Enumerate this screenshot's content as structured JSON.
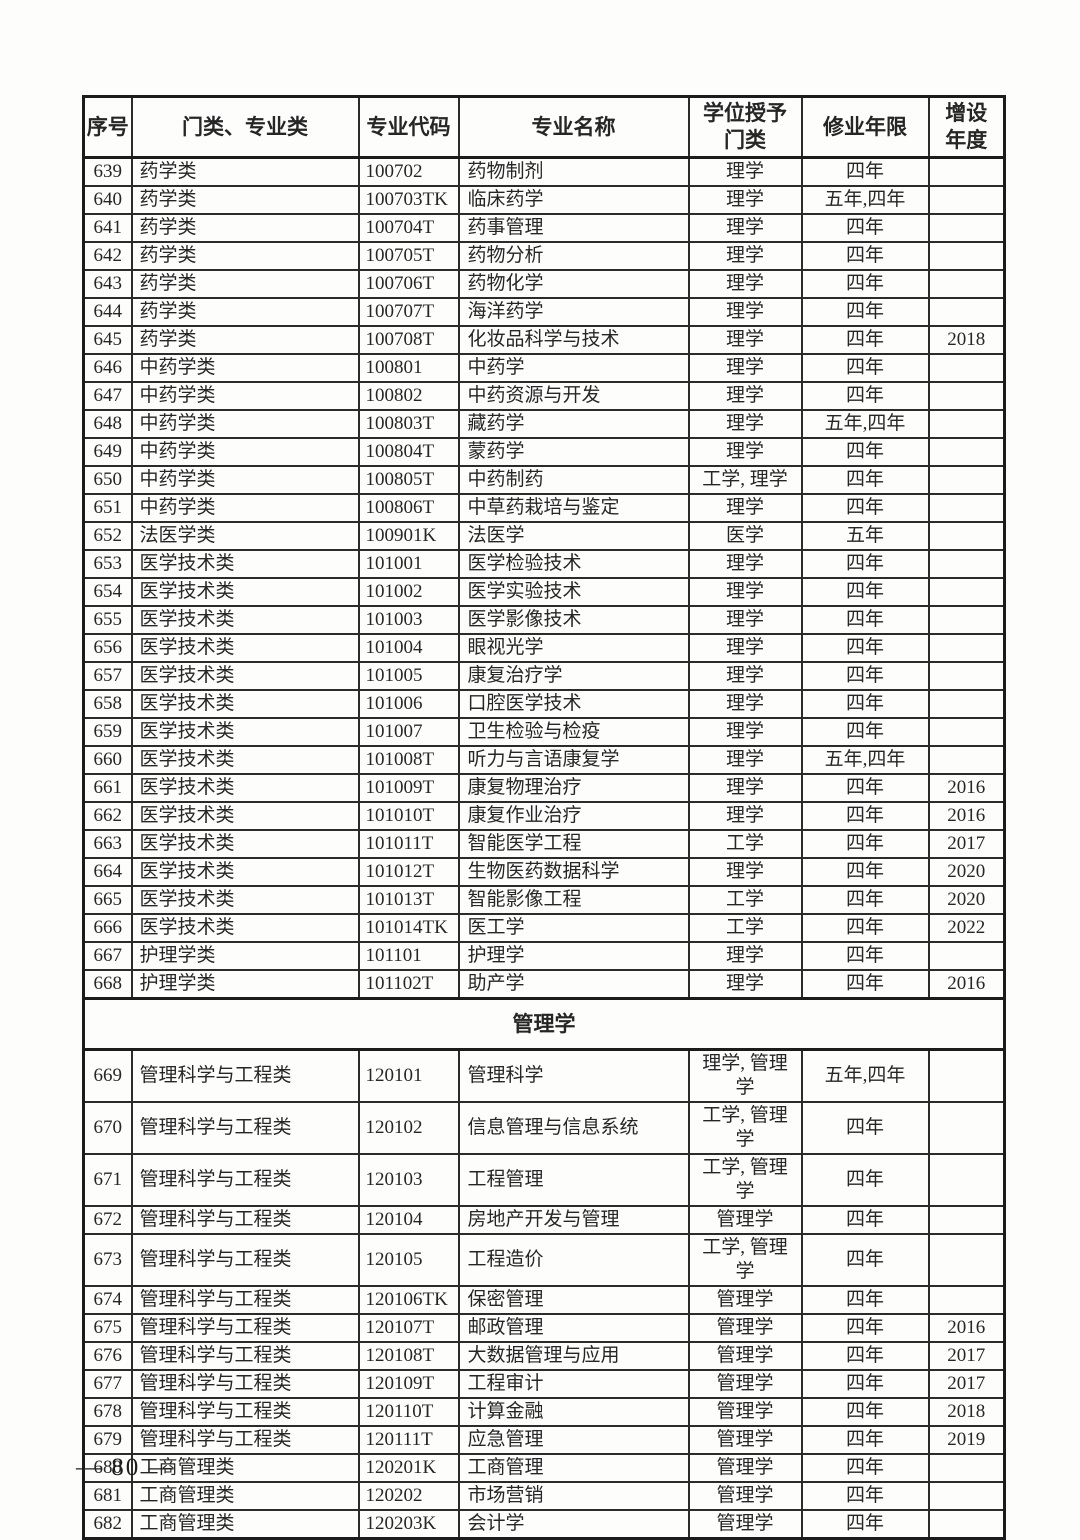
{
  "page": {
    "page_number": "— 80 —"
  },
  "table": {
    "columns": [
      {
        "key": "no",
        "label": "序号"
      },
      {
        "key": "category",
        "label": "门类、专业类"
      },
      {
        "key": "code",
        "label": "专业代码"
      },
      {
        "key": "name",
        "label": "专业名称"
      },
      {
        "key": "degree",
        "label": "学位授予\n门类"
      },
      {
        "key": "years",
        "label": "修业年限"
      },
      {
        "key": "year_added",
        "label": "增设\n年度"
      }
    ],
    "sections": [
      {
        "type": "rows",
        "rows": [
          {
            "no": "639",
            "category": "药学类",
            "code": "100702",
            "name": "药物制剂",
            "degree": "理学",
            "years": "四年",
            "year_added": ""
          },
          {
            "no": "640",
            "category": "药学类",
            "code": "100703TK",
            "name": "临床药学",
            "degree": "理学",
            "years": "五年,四年",
            "year_added": ""
          },
          {
            "no": "641",
            "category": "药学类",
            "code": "100704T",
            "name": "药事管理",
            "degree": "理学",
            "years": "四年",
            "year_added": ""
          },
          {
            "no": "642",
            "category": "药学类",
            "code": "100705T",
            "name": "药物分析",
            "degree": "理学",
            "years": "四年",
            "year_added": ""
          },
          {
            "no": "643",
            "category": "药学类",
            "code": "100706T",
            "name": "药物化学",
            "degree": "理学",
            "years": "四年",
            "year_added": ""
          },
          {
            "no": "644",
            "category": "药学类",
            "code": "100707T",
            "name": "海洋药学",
            "degree": "理学",
            "years": "四年",
            "year_added": ""
          },
          {
            "no": "645",
            "category": "药学类",
            "code": "100708T",
            "name": "化妆品科学与技术",
            "degree": "理学",
            "years": "四年",
            "year_added": "2018"
          },
          {
            "no": "646",
            "category": "中药学类",
            "code": "100801",
            "name": "中药学",
            "degree": "理学",
            "years": "四年",
            "year_added": ""
          },
          {
            "no": "647",
            "category": "中药学类",
            "code": "100802",
            "name": "中药资源与开发",
            "degree": "理学",
            "years": "四年",
            "year_added": ""
          },
          {
            "no": "648",
            "category": "中药学类",
            "code": "100803T",
            "name": "藏药学",
            "degree": "理学",
            "years": "五年,四年",
            "year_added": ""
          },
          {
            "no": "649",
            "category": "中药学类",
            "code": "100804T",
            "name": "蒙药学",
            "degree": "理学",
            "years": "四年",
            "year_added": ""
          },
          {
            "no": "650",
            "category": "中药学类",
            "code": "100805T",
            "name": "中药制药",
            "degree": "工学, 理学",
            "years": "四年",
            "year_added": ""
          },
          {
            "no": "651",
            "category": "中药学类",
            "code": "100806T",
            "name": "中草药栽培与鉴定",
            "degree": "理学",
            "years": "四年",
            "year_added": ""
          },
          {
            "no": "652",
            "category": "法医学类",
            "code": "100901K",
            "name": "法医学",
            "degree": "医学",
            "years": "五年",
            "year_added": ""
          },
          {
            "no": "653",
            "category": "医学技术类",
            "code": "101001",
            "name": "医学检验技术",
            "degree": "理学",
            "years": "四年",
            "year_added": ""
          },
          {
            "no": "654",
            "category": "医学技术类",
            "code": "101002",
            "name": "医学实验技术",
            "degree": "理学",
            "years": "四年",
            "year_added": ""
          },
          {
            "no": "655",
            "category": "医学技术类",
            "code": "101003",
            "name": "医学影像技术",
            "degree": "理学",
            "years": "四年",
            "year_added": ""
          },
          {
            "no": "656",
            "category": "医学技术类",
            "code": "101004",
            "name": "眼视光学",
            "degree": "理学",
            "years": "四年",
            "year_added": ""
          },
          {
            "no": "657",
            "category": "医学技术类",
            "code": "101005",
            "name": "康复治疗学",
            "degree": "理学",
            "years": "四年",
            "year_added": ""
          },
          {
            "no": "658",
            "category": "医学技术类",
            "code": "101006",
            "name": "口腔医学技术",
            "degree": "理学",
            "years": "四年",
            "year_added": ""
          },
          {
            "no": "659",
            "category": "医学技术类",
            "code": "101007",
            "name": "卫生检验与检疫",
            "degree": "理学",
            "years": "四年",
            "year_added": ""
          },
          {
            "no": "660",
            "category": "医学技术类",
            "code": "101008T",
            "name": "听力与言语康复学",
            "degree": "理学",
            "years": "五年,四年",
            "year_added": ""
          },
          {
            "no": "661",
            "category": "医学技术类",
            "code": "101009T",
            "name": "康复物理治疗",
            "degree": "理学",
            "years": "四年",
            "year_added": "2016"
          },
          {
            "no": "662",
            "category": "医学技术类",
            "code": "101010T",
            "name": "康复作业治疗",
            "degree": "理学",
            "years": "四年",
            "year_added": "2016"
          },
          {
            "no": "663",
            "category": "医学技术类",
            "code": "101011T",
            "name": "智能医学工程",
            "degree": "工学",
            "years": "四年",
            "year_added": "2017"
          },
          {
            "no": "664",
            "category": "医学技术类",
            "code": "101012T",
            "name": "生物医药数据科学",
            "degree": "理学",
            "years": "四年",
            "year_added": "2020"
          },
          {
            "no": "665",
            "category": "医学技术类",
            "code": "101013T",
            "name": "智能影像工程",
            "degree": "工学",
            "years": "四年",
            "year_added": "2020"
          },
          {
            "no": "666",
            "category": "医学技术类",
            "code": "101014TK",
            "name": "医工学",
            "degree": "工学",
            "years": "四年",
            "year_added": "2022"
          },
          {
            "no": "667",
            "category": "护理学类",
            "code": "101101",
            "name": "护理学",
            "degree": "理学",
            "years": "四年",
            "year_added": ""
          },
          {
            "no": "668",
            "category": "护理学类",
            "code": "101102T",
            "name": "助产学",
            "degree": "理学",
            "years": "四年",
            "year_added": "2016"
          }
        ]
      },
      {
        "type": "section",
        "label": "管理学"
      },
      {
        "type": "rows",
        "rows": [
          {
            "no": "669",
            "category": "管理科学与工程类",
            "code": "120101",
            "name": "管理科学",
            "degree": "理学, 管理学",
            "years": "五年,四年",
            "year_added": ""
          },
          {
            "no": "670",
            "category": "管理科学与工程类",
            "code": "120102",
            "name": "信息管理与信息系统",
            "degree": "工学, 管理学",
            "years": "四年",
            "year_added": ""
          },
          {
            "no": "671",
            "category": "管理科学与工程类",
            "code": "120103",
            "name": "工程管理",
            "degree": "工学, 管理学",
            "years": "四年",
            "year_added": ""
          },
          {
            "no": "672",
            "category": "管理科学与工程类",
            "code": "120104",
            "name": "房地产开发与管理",
            "degree": "管理学",
            "years": "四年",
            "year_added": ""
          },
          {
            "no": "673",
            "category": "管理科学与工程类",
            "code": "120105",
            "name": "工程造价",
            "degree": "工学, 管理学",
            "years": "四年",
            "year_added": ""
          },
          {
            "no": "674",
            "category": "管理科学与工程类",
            "code": "120106TK",
            "name": "保密管理",
            "degree": "管理学",
            "years": "四年",
            "year_added": ""
          },
          {
            "no": "675",
            "category": "管理科学与工程类",
            "code": "120107T",
            "name": "邮政管理",
            "degree": "管理学",
            "years": "四年",
            "year_added": "2016"
          },
          {
            "no": "676",
            "category": "管理科学与工程类",
            "code": "120108T",
            "name": "大数据管理与应用",
            "degree": "管理学",
            "years": "四年",
            "year_added": "2017"
          },
          {
            "no": "677",
            "category": "管理科学与工程类",
            "code": "120109T",
            "name": "工程审计",
            "degree": "管理学",
            "years": "四年",
            "year_added": "2017"
          },
          {
            "no": "678",
            "category": "管理科学与工程类",
            "code": "120110T",
            "name": "计算金融",
            "degree": "管理学",
            "years": "四年",
            "year_added": "2018"
          },
          {
            "no": "679",
            "category": "管理科学与工程类",
            "code": "120111T",
            "name": "应急管理",
            "degree": "管理学",
            "years": "四年",
            "year_added": "2019"
          },
          {
            "no": "680",
            "category": "工商管理类",
            "code": "120201K",
            "name": "工商管理",
            "degree": "管理学",
            "years": "四年",
            "year_added": ""
          },
          {
            "no": "681",
            "category": "工商管理类",
            "code": "120202",
            "name": "市场营销",
            "degree": "管理学",
            "years": "四年",
            "year_added": ""
          },
          {
            "no": "682",
            "category": "工商管理类",
            "code": "120203K",
            "name": "会计学",
            "degree": "管理学",
            "years": "四年",
            "year_added": ""
          }
        ]
      }
    ]
  }
}
